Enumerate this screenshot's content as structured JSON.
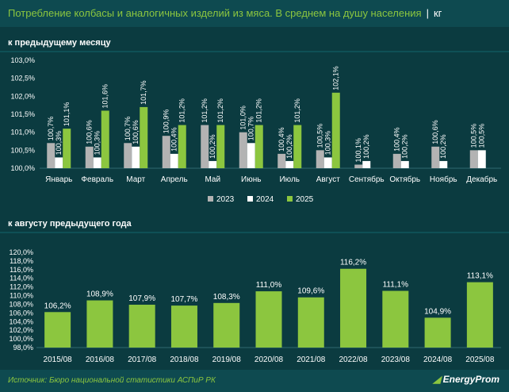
{
  "title": "Потребление колбасы и аналогичных изделий из мяса. В среднем на душу населения",
  "unit": "кг",
  "footer": {
    "source": "Источник: Бюро национальной статистики АСПиР РК",
    "logo": "EnergyProm"
  },
  "colors": {
    "2023": "#b3b3b3",
    "2024": "#ffffff",
    "2025": "#8cc63f",
    "bars": "#8cc63f",
    "background": "#0b3b40"
  },
  "chart_data": [
    {
      "type": "bar",
      "title": "к предыдущему месяцу",
      "categories": [
        "Январь",
        "Февраль",
        "Март",
        "Апрель",
        "Май",
        "Июнь",
        "Июль",
        "Август",
        "Сентябрь",
        "Октябрь",
        "Ноябрь",
        "Декабрь"
      ],
      "series": [
        {
          "name": "2023",
          "values": [
            100.7,
            100.6,
            100.7,
            100.9,
            101.2,
            101.0,
            100.4,
            100.5,
            100.1,
            100.4,
            100.6,
            100.5
          ],
          "labels": [
            "100,7%",
            "100,6%",
            "100,7%",
            "100,9%",
            "101,2%",
            "101,0%",
            "100,4%",
            "100,5%",
            "100,1%",
            "100,4%",
            "100,6%",
            "100,5%"
          ]
        },
        {
          "name": "2024",
          "values": [
            100.3,
            100.3,
            100.6,
            100.4,
            100.2,
            100.7,
            100.2,
            100.3,
            100.2,
            100.2,
            100.2,
            100.5
          ],
          "labels": [
            "100,3%",
            "100,3%",
            "100,6%",
            "100,4%",
            "100,2%",
            "100,7%",
            "100,2%",
            "100,3%",
            "100,2%",
            "100,2%",
            "100,2%",
            "100,5%"
          ]
        },
        {
          "name": "2025",
          "values": [
            101.1,
            101.6,
            101.7,
            101.2,
            101.2,
            101.2,
            101.2,
            102.1,
            null,
            null,
            null,
            null
          ],
          "labels": [
            "101,1%",
            "101,6%",
            "101,7%",
            "101,2%",
            "101,2%",
            "101,2%",
            "101,2%",
            "102,1%",
            "",
            "",
            "",
            ""
          ]
        }
      ],
      "yticks": [
        "100,0%",
        "100,5%",
        "101,0%",
        "101,5%",
        "102,0%",
        "102,5%",
        "103,0%"
      ],
      "ylim": [
        100,
        103
      ],
      "legend": [
        "2023",
        "2024",
        "2025"
      ],
      "legend_position": "bottom-center",
      "grid": false
    },
    {
      "type": "bar",
      "title": "к августу предыдущего года",
      "categories": [
        "2015/08",
        "2016/08",
        "2017/08",
        "2018/08",
        "2019/08",
        "2020/08",
        "2021/08",
        "2022/08",
        "2023/08",
        "2024/08",
        "2025/08"
      ],
      "values": [
        106.2,
        108.9,
        107.9,
        107.7,
        108.3,
        111.0,
        109.6,
        116.2,
        111.1,
        104.9,
        113.1
      ],
      "labels": [
        "106,2%",
        "108,9%",
        "107,9%",
        "107,7%",
        "108,3%",
        "111,0%",
        "109,6%",
        "116,2%",
        "111,1%",
        "104,9%",
        "113,1%"
      ],
      "yticks": [
        "98,0%",
        "100,0%",
        "102,0%",
        "104,0%",
        "106,0%",
        "108,0%",
        "110,0%",
        "112,0%",
        "114,0%",
        "116,0%",
        "118,0%",
        "120,0%"
      ],
      "ylim": [
        98,
        120
      ],
      "grid": false
    }
  ]
}
